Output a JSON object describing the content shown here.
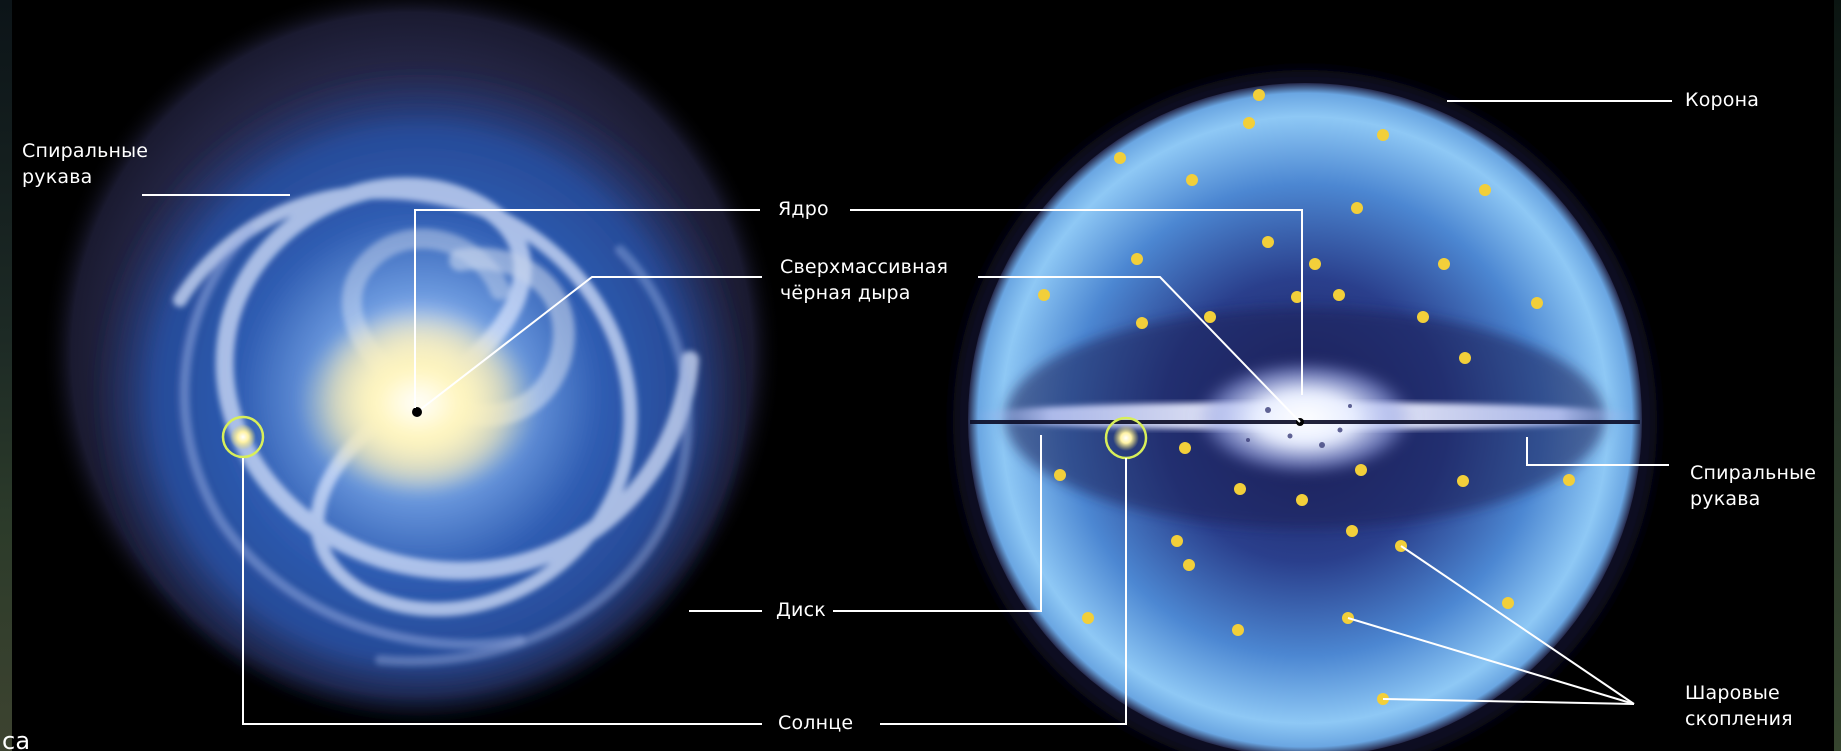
{
  "labels": {
    "spiral_arms_left": "Спиральные\nрукава",
    "core": "Ядро",
    "black_hole": "Сверхмассивная\nчёрная дыра",
    "disk": "Диск",
    "sun": "Солнце",
    "corona": "Корона",
    "spiral_arms_right": "Спиральные\nрукава",
    "globular_clusters": "Шаровые\nскопления",
    "corner_text": "са"
  },
  "colors": {
    "background": "#000000",
    "label_text": "#ffffff",
    "leader_lines": "#ffffff",
    "globular_cluster": "#f2cf3a",
    "sun_ring": "#d8ef5a",
    "halo_blue": "#6fb6ee",
    "galaxy_blue": "#2f5fb5",
    "core_glow": "#fff6c0"
  }
}
